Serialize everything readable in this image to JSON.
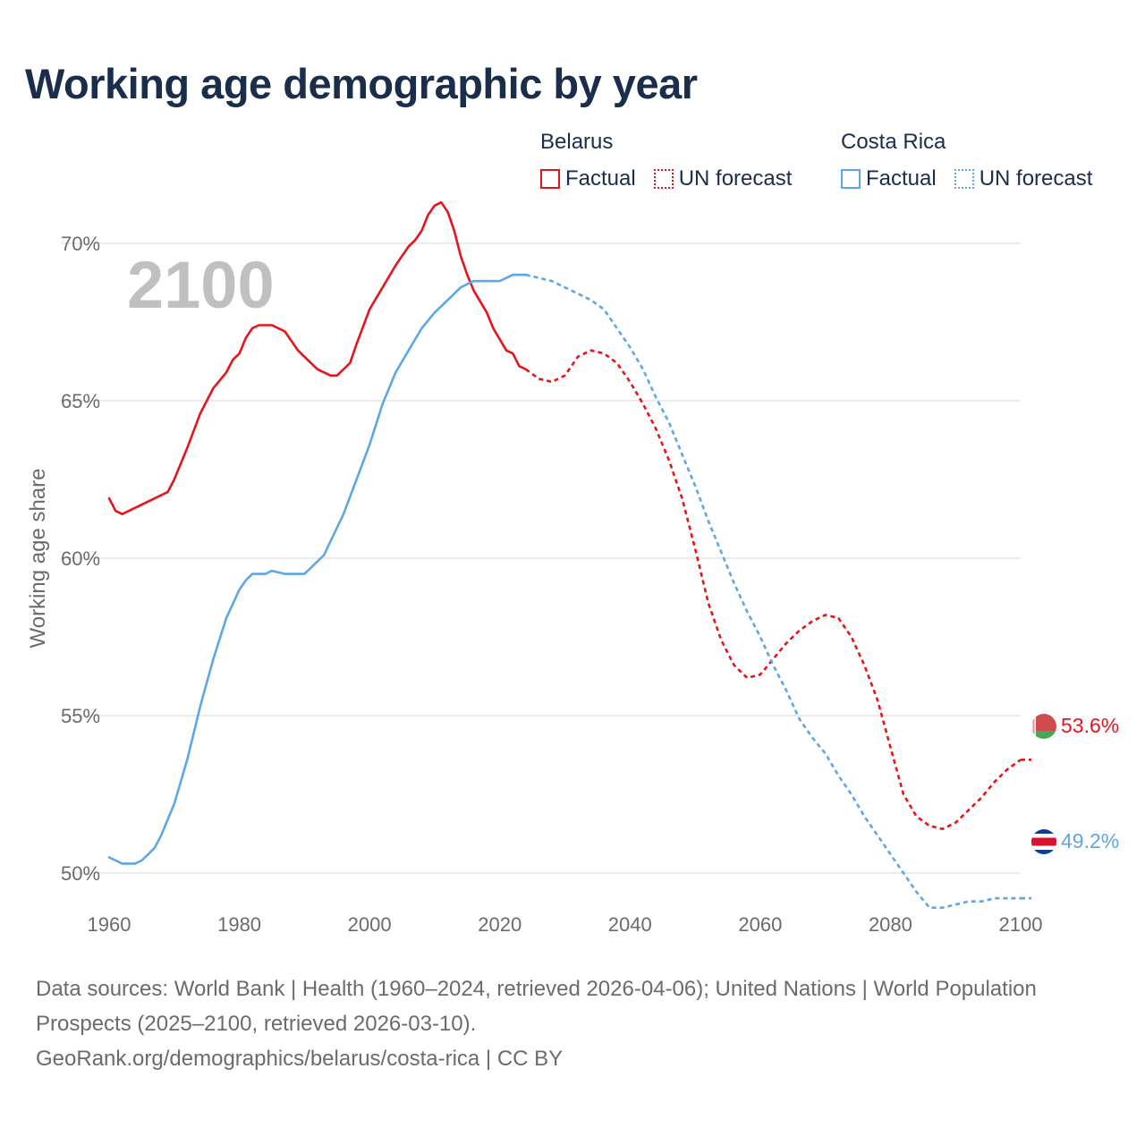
{
  "title": "Working age demographic by year",
  "legend": {
    "groups": [
      {
        "name": "Belarus",
        "color": "#e8141c",
        "factual_label": "Factual",
        "forecast_label": "UN forecast"
      },
      {
        "name": "Costa Rica",
        "color": "#5ea7e6",
        "factual_label": "Factual",
        "forecast_label": "UN forecast"
      }
    ]
  },
  "year_watermark": "2100",
  "footer": {
    "sources": "Data sources: World Bank | Health (1960–2024, retrieved 2026-04-06); United Nations | World Population Prospects (2025–2100, retrieved 2026-03-10).",
    "url": "GeoRank.org/demographics/belarus/costa-rica | CC BY"
  },
  "chart_data": {
    "type": "line",
    "title": "Working age demographic by year",
    "xlabel": "",
    "ylabel": "Working age share",
    "xlim": [
      1960,
      2100
    ],
    "ylim": [
      47.5,
      72.5
    ],
    "x_ticks": [
      1960,
      1980,
      2000,
      2020,
      2040,
      2060,
      2080,
      2100
    ],
    "x_tick_labels": [
      "1960",
      "1980",
      "2000",
      "2020",
      "2040",
      "2060",
      "2080",
      "2100"
    ],
    "y_ticks": [
      50,
      55,
      60,
      65,
      70
    ],
    "y_tick_labels": [
      "50%",
      "55%",
      "60%",
      "65%",
      "70%"
    ],
    "grid": true,
    "factual_end_year": 2024,
    "series": [
      {
        "name": "Belarus",
        "color": "#e8141c",
        "end_label": "53.6%",
        "flag": "belarus",
        "points": [
          [
            1960,
            61.9
          ],
          [
            1961,
            61.5
          ],
          [
            1962,
            61.4
          ],
          [
            1964,
            61.6
          ],
          [
            1966,
            61.8
          ],
          [
            1969,
            62.1
          ],
          [
            1970,
            62.5
          ],
          [
            1972,
            63.5
          ],
          [
            1974,
            64.6
          ],
          [
            1976,
            65.4
          ],
          [
            1978,
            65.9
          ],
          [
            1979,
            66.3
          ],
          [
            1980,
            66.5
          ],
          [
            1981,
            67.0
          ],
          [
            1982,
            67.3
          ],
          [
            1983,
            67.4
          ],
          [
            1985,
            67.4
          ],
          [
            1987,
            67.2
          ],
          [
            1989,
            66.6
          ],
          [
            1991,
            66.2
          ],
          [
            1992,
            66.0
          ],
          [
            1994,
            65.8
          ],
          [
            1995,
            65.8
          ],
          [
            1997,
            66.2
          ],
          [
            1998,
            66.8
          ],
          [
            2000,
            67.9
          ],
          [
            2002,
            68.6
          ],
          [
            2004,
            69.3
          ],
          [
            2006,
            69.9
          ],
          [
            2007,
            70.1
          ],
          [
            2008,
            70.4
          ],
          [
            2009,
            70.9
          ],
          [
            2010,
            71.2
          ],
          [
            2011,
            71.3
          ],
          [
            2012,
            71.0
          ],
          [
            2013,
            70.4
          ],
          [
            2014,
            69.6
          ],
          [
            2015,
            69.0
          ],
          [
            2016,
            68.5
          ],
          [
            2018,
            67.8
          ],
          [
            2019,
            67.3
          ],
          [
            2021,
            66.6
          ],
          [
            2022,
            66.5
          ],
          [
            2023,
            66.1
          ],
          [
            2024,
            66.0
          ],
          [
            2026,
            65.7
          ],
          [
            2028,
            65.6
          ],
          [
            2030,
            65.8
          ],
          [
            2032,
            66.4
          ],
          [
            2034,
            66.6
          ],
          [
            2036,
            66.5
          ],
          [
            2038,
            66.2
          ],
          [
            2040,
            65.6
          ],
          [
            2042,
            64.9
          ],
          [
            2044,
            64.1
          ],
          [
            2046,
            63.1
          ],
          [
            2048,
            61.9
          ],
          [
            2050,
            60.3
          ],
          [
            2052,
            58.6
          ],
          [
            2054,
            57.4
          ],
          [
            2056,
            56.6
          ],
          [
            2058,
            56.2
          ],
          [
            2060,
            56.3
          ],
          [
            2062,
            56.8
          ],
          [
            2064,
            57.3
          ],
          [
            2066,
            57.7
          ],
          [
            2068,
            58.0
          ],
          [
            2070,
            58.2
          ],
          [
            2072,
            58.1
          ],
          [
            2074,
            57.5
          ],
          [
            2076,
            56.6
          ],
          [
            2078,
            55.5
          ],
          [
            2080,
            54.0
          ],
          [
            2082,
            52.5
          ],
          [
            2084,
            51.8
          ],
          [
            2086,
            51.5
          ],
          [
            2088,
            51.4
          ],
          [
            2090,
            51.6
          ],
          [
            2092,
            52.0
          ],
          [
            2094,
            52.4
          ],
          [
            2096,
            52.9
          ],
          [
            2098,
            53.3
          ],
          [
            2100,
            53.6
          ]
        ]
      },
      {
        "name": "Costa Rica",
        "color": "#5ea7e6",
        "end_label": "49.2%",
        "flag": "costa-rica",
        "points": [
          [
            1960,
            50.5
          ],
          [
            1962,
            50.3
          ],
          [
            1964,
            50.3
          ],
          [
            1965,
            50.4
          ],
          [
            1966,
            50.6
          ],
          [
            1967,
            50.8
          ],
          [
            1968,
            51.2
          ],
          [
            1970,
            52.2
          ],
          [
            1972,
            53.6
          ],
          [
            1974,
            55.3
          ],
          [
            1976,
            56.8
          ],
          [
            1978,
            58.1
          ],
          [
            1980,
            59.0
          ],
          [
            1981,
            59.3
          ],
          [
            1982,
            59.5
          ],
          [
            1984,
            59.5
          ],
          [
            1985,
            59.6
          ],
          [
            1987,
            59.5
          ],
          [
            1990,
            59.5
          ],
          [
            1993,
            60.1
          ],
          [
            1996,
            61.4
          ],
          [
            1998,
            62.5
          ],
          [
            2000,
            63.6
          ],
          [
            2002,
            64.9
          ],
          [
            2004,
            65.9
          ],
          [
            2006,
            66.6
          ],
          [
            2008,
            67.3
          ],
          [
            2010,
            67.8
          ],
          [
            2012,
            68.2
          ],
          [
            2014,
            68.6
          ],
          [
            2016,
            68.8
          ],
          [
            2018,
            68.8
          ],
          [
            2020,
            68.8
          ],
          [
            2022,
            69.0
          ],
          [
            2024,
            69.0
          ],
          [
            2026,
            68.9
          ],
          [
            2028,
            68.8
          ],
          [
            2030,
            68.6
          ],
          [
            2032,
            68.4
          ],
          [
            2034,
            68.2
          ],
          [
            2036,
            67.9
          ],
          [
            2038,
            67.3
          ],
          [
            2040,
            66.7
          ],
          [
            2042,
            66.0
          ],
          [
            2044,
            65.1
          ],
          [
            2046,
            64.3
          ],
          [
            2048,
            63.3
          ],
          [
            2050,
            62.3
          ],
          [
            2052,
            61.2
          ],
          [
            2054,
            60.2
          ],
          [
            2056,
            59.2
          ],
          [
            2058,
            58.3
          ],
          [
            2060,
            57.5
          ],
          [
            2062,
            56.6
          ],
          [
            2064,
            55.8
          ],
          [
            2066,
            54.9
          ],
          [
            2068,
            54.3
          ],
          [
            2070,
            53.8
          ],
          [
            2072,
            53.1
          ],
          [
            2074,
            52.5
          ],
          [
            2076,
            51.8
          ],
          [
            2078,
            51.2
          ],
          [
            2080,
            50.6
          ],
          [
            2082,
            50.0
          ],
          [
            2084,
            49.4
          ],
          [
            2086,
            48.9
          ],
          [
            2088,
            48.9
          ],
          [
            2090,
            49.0
          ],
          [
            2092,
            49.1
          ],
          [
            2094,
            49.1
          ],
          [
            2096,
            49.2
          ],
          [
            2098,
            49.2
          ],
          [
            2100,
            49.2
          ]
        ]
      }
    ]
  }
}
